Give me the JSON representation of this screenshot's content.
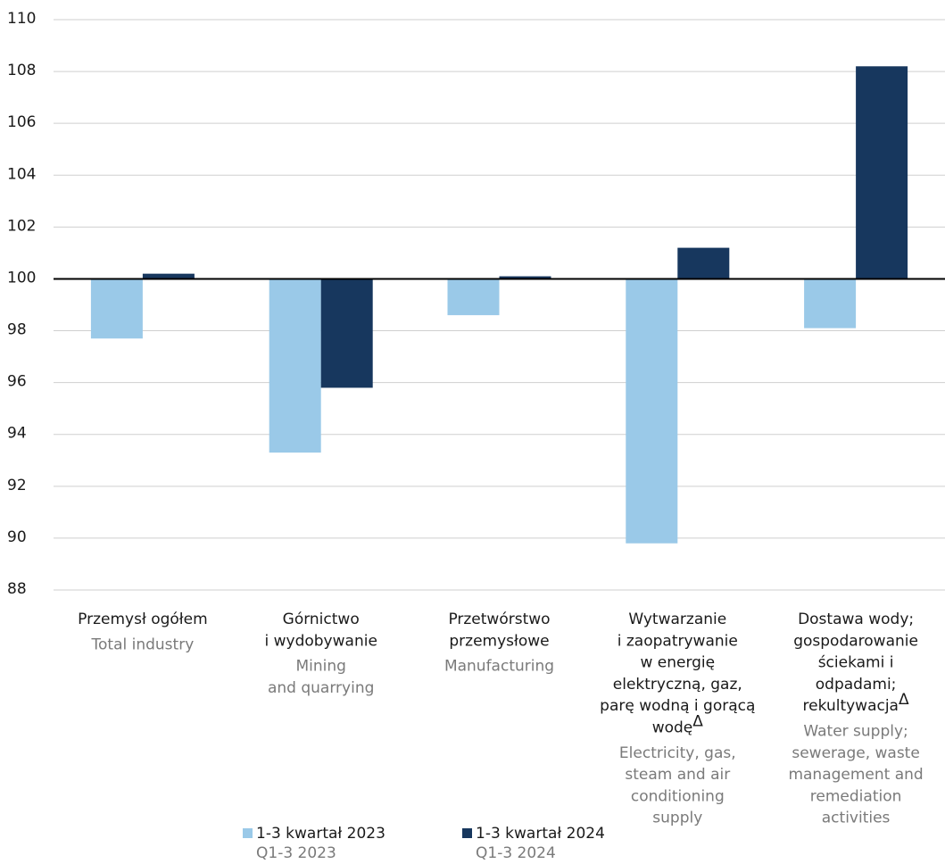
{
  "chart_data": {
    "type": "bar",
    "categories": [
      {
        "pl": [
          "Przemysł ogółem"
        ],
        "en": [
          "Total industry"
        ]
      },
      {
        "pl": [
          "Górnictwo",
          "i wydobywanie"
        ],
        "en": [
          "Mining",
          "and quarrying"
        ]
      },
      {
        "pl": [
          "Przetwórstwo",
          "przemysłowe"
        ],
        "en": [
          "Manufacturing"
        ]
      },
      {
        "pl": [
          "Wytwarzanie",
          "i zaopatrywanie",
          "w energię",
          "elektryczną, gaz,",
          "parę wodną i gorącą",
          "wodę"
        ],
        "mark": "Δ",
        "en": [
          "Electricity, gas,",
          "steam and air",
          "conditioning",
          "supply"
        ]
      },
      {
        "pl": [
          "Dostawa wody;",
          "gospodarowanie",
          "ściekami i",
          "odpadami;",
          "rekultywacja"
        ],
        "mark": "Δ",
        "en": [
          "Water supply;",
          "sewerage, waste",
          "management and",
          "remediation",
          "activities"
        ]
      }
    ],
    "series": [
      {
        "name": "1-3 kwartał 2023",
        "name_en": "Q1-3 2023",
        "color": "#9ac9e8",
        "values": [
          97.7,
          93.3,
          98.6,
          89.8,
          98.1
        ]
      },
      {
        "name": "1-3 kwartał 2024",
        "name_en": "Q1-3 2024",
        "color": "#17375e",
        "values": [
          100.2,
          95.8,
          100.1,
          101.2,
          108.2
        ]
      }
    ],
    "baseline": 100,
    "ylim": [
      88,
      110
    ],
    "yticks": [
      88,
      90,
      92,
      94,
      96,
      98,
      100,
      102,
      104,
      106,
      108,
      110
    ],
    "grid": true
  }
}
